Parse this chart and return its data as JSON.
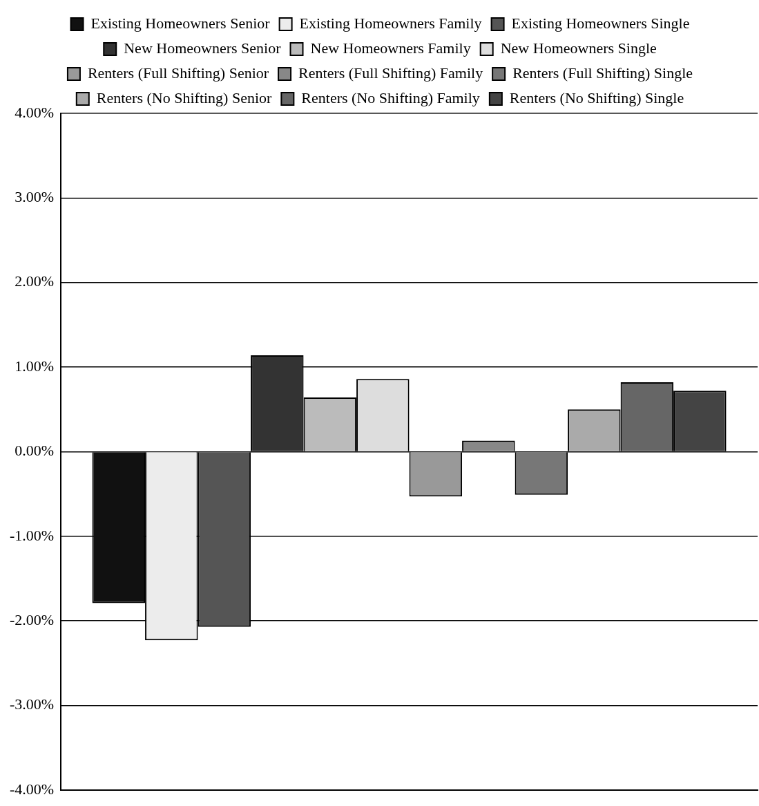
{
  "chart_data": {
    "type": "bar",
    "categories": [
      null
    ],
    "series": [
      {
        "name": "Existing Homeowners Senior",
        "color": "#111111",
        "values": [
          -1.79
        ]
      },
      {
        "name": "Existing Homeowners Family",
        "color": "#ececec",
        "values": [
          -2.23
        ]
      },
      {
        "name": "Existing Homeowners Single",
        "color": "#555555",
        "values": [
          -2.07
        ]
      },
      {
        "name": "New Homeowners Senior",
        "color": "#333333",
        "values": [
          1.14
        ]
      },
      {
        "name": "New Homeowners Family",
        "color": "#bbbbbb",
        "values": [
          0.64
        ]
      },
      {
        "name": "New Homeowners Single",
        "color": "#dddddd",
        "values": [
          0.86
        ]
      },
      {
        "name": "Renters (Full Shifting) Senior",
        "color": "#999999",
        "values": [
          -0.53
        ]
      },
      {
        "name": "Renters (Full Shifting) Family",
        "color": "#888888",
        "values": [
          0.13
        ]
      },
      {
        "name": "Renters (Full Shifting) Single",
        "color": "#777777",
        "values": [
          -0.51
        ]
      },
      {
        "name": "Renters (No Shifting) Senior",
        "color": "#aaaaaa",
        "values": [
          0.5
        ]
      },
      {
        "name": "Renters (No Shifting) Family",
        "color": "#666666",
        "values": [
          0.82
        ]
      },
      {
        "name": "Renters (No Shifting) Single",
        "color": "#444444",
        "values": [
          0.72
        ]
      }
    ],
    "ylim": [
      -4,
      4
    ],
    "yticks": [
      {
        "value": -4,
        "label": "-4.00%"
      },
      {
        "value": -3,
        "label": "-3.00%"
      },
      {
        "value": -2,
        "label": "-2.00%"
      },
      {
        "value": -1,
        "label": "-1.00%"
      },
      {
        "value": 0,
        "label": "0.00%"
      },
      {
        "value": 1,
        "label": "1.00%"
      },
      {
        "value": 2,
        "label": "2.00%"
      },
      {
        "value": 3,
        "label": "3.00%"
      },
      {
        "value": 4,
        "label": "4.00%"
      }
    ],
    "grid": "y",
    "legend": "top",
    "tick_labels": "y"
  }
}
